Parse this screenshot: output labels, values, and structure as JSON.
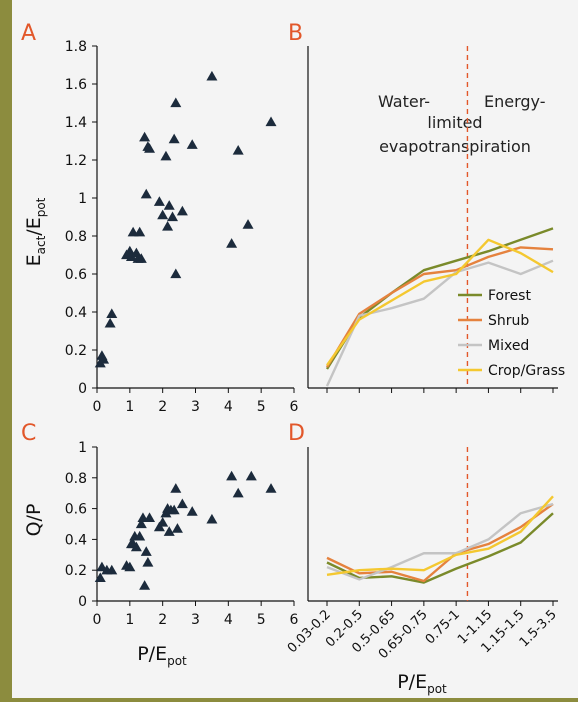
{
  "colors": {
    "background": "#f4f4f4",
    "frame": "#8c8c3e",
    "panel_letter": "#e2572a",
    "marker": "#1c2b3c",
    "divider": "#e2572a"
  },
  "shared": {
    "xlabel_left_main": "P/E",
    "xlabel_left_sub": "pot",
    "xlabel_right_main": "P/E",
    "xlabel_right_sub": "pot"
  },
  "chart_data": [
    {
      "panel": "A",
      "type": "scatter",
      "ylabel_parts": [
        "E",
        "act",
        "/E",
        "pot"
      ],
      "xlim": [
        0,
        6
      ],
      "ylim": [
        0,
        1.8
      ],
      "xticks": [
        "0",
        "1",
        "2",
        "3",
        "4",
        "5",
        "6"
      ],
      "yticks": [
        "0",
        "0.2",
        "0.4",
        "0.6",
        "0.8",
        "1",
        "1.2",
        "1.4",
        "1.6",
        "1.8"
      ],
      "x": [
        0.1,
        0.15,
        0.2,
        0.4,
        0.45,
        0.9,
        1.0,
        1.05,
        1.1,
        1.2,
        1.25,
        1.3,
        1.35,
        1.45,
        1.5,
        1.55,
        1.6,
        1.9,
        2.0,
        2.1,
        2.15,
        2.2,
        2.3,
        2.35,
        2.4,
        2.4,
        2.6,
        2.9,
        3.5,
        4.1,
        4.3,
        4.6,
        5.3
      ],
      "y": [
        0.13,
        0.17,
        0.15,
        0.34,
        0.39,
        0.7,
        0.72,
        0.69,
        0.82,
        0.71,
        0.68,
        0.82,
        0.68,
        1.32,
        1.02,
        1.27,
        1.26,
        0.98,
        0.91,
        1.22,
        0.85,
        0.96,
        0.9,
        1.31,
        0.6,
        1.5,
        0.93,
        1.28,
        1.64,
        0.76,
        1.25,
        0.86,
        1.4
      ],
      "marker": "triangle"
    },
    {
      "panel": "B",
      "type": "line",
      "ylim": [
        0,
        1.8
      ],
      "categories": [
        "0.03-0.2",
        "0.2-0.5",
        "0.5-0.65",
        "0.65-0.75",
        "0.75-1",
        "1-1.15",
        "1.15-1.5",
        "1.5-3.5"
      ],
      "annotations": {
        "water_line1": "Water-",
        "energy_line1": "Energy-",
        "limited": "limited",
        "evap": "evapotranspiration"
      },
      "divider_x": 4.35,
      "legend_position": "right",
      "series": [
        {
          "name": "Forest",
          "color": "#7a8a2a",
          "values": [
            0.1,
            0.37,
            0.5,
            0.62,
            0.67,
            0.72,
            0.78,
            0.84
          ]
        },
        {
          "name": "Shrub",
          "color": "#e5823e",
          "values": [
            0.11,
            0.39,
            0.5,
            0.6,
            0.62,
            0.69,
            0.74,
            0.73
          ]
        },
        {
          "name": "Mixed",
          "color": "#c4c4c4",
          "values": [
            0.01,
            0.38,
            0.42,
            0.47,
            0.61,
            0.66,
            0.6,
            0.67
          ]
        },
        {
          "name": "Crop/Grass",
          "color": "#f4c830",
          "values": [
            0.12,
            0.36,
            0.46,
            0.56,
            0.6,
            0.78,
            0.71,
            0.61
          ]
        }
      ]
    },
    {
      "panel": "C",
      "type": "scatter",
      "ylabel": "Q/P",
      "xlim": [
        0,
        6
      ],
      "ylim": [
        0,
        1
      ],
      "xticks": [
        "0",
        "1",
        "2",
        "3",
        "4",
        "5",
        "6"
      ],
      "yticks": [
        "0",
        "0.2",
        "0.4",
        "0.6",
        "0.8",
        "1"
      ],
      "x": [
        0.1,
        0.15,
        0.3,
        0.45,
        0.9,
        1.0,
        1.05,
        1.1,
        1.15,
        1.2,
        1.3,
        1.35,
        1.4,
        1.45,
        1.5,
        1.55,
        1.6,
        1.9,
        2.0,
        2.1,
        2.15,
        2.2,
        2.25,
        2.35,
        2.4,
        2.45,
        2.6,
        2.9,
        3.5,
        4.1,
        4.3,
        4.7,
        5.3
      ],
      "y": [
        0.15,
        0.22,
        0.2,
        0.2,
        0.23,
        0.22,
        0.37,
        0.37,
        0.42,
        0.35,
        0.42,
        0.5,
        0.54,
        0.1,
        0.32,
        0.25,
        0.54,
        0.48,
        0.51,
        0.57,
        0.6,
        0.45,
        0.59,
        0.59,
        0.73,
        0.47,
        0.63,
        0.58,
        0.53,
        0.81,
        0.7,
        0.81,
        0.73
      ],
      "marker": "triangle"
    },
    {
      "panel": "D",
      "type": "line",
      "ylim": [
        0,
        1
      ],
      "categories": [
        "0.03-0.2",
        "0.2-0.5",
        "0.5-0.65",
        "0.65-0.75",
        "0.75-1",
        "1-1.15",
        "1.15-1.5",
        "1.5-3.5"
      ],
      "divider_x": 4.35,
      "series": [
        {
          "name": "Forest",
          "color": "#7a8a2a",
          "values": [
            0.25,
            0.15,
            0.16,
            0.12,
            0.21,
            0.29,
            0.38,
            0.57
          ]
        },
        {
          "name": "Shrub",
          "color": "#e5823e",
          "values": [
            0.28,
            0.18,
            0.19,
            0.13,
            0.31,
            0.37,
            0.48,
            0.63
          ]
        },
        {
          "name": "Mixed",
          "color": "#c4c4c4",
          "values": [
            0.22,
            0.14,
            0.22,
            0.31,
            0.31,
            0.4,
            0.57,
            0.63
          ]
        },
        {
          "name": "Crop/Grass",
          "color": "#f4c830",
          "values": [
            0.17,
            0.2,
            0.21,
            0.2,
            0.3,
            0.34,
            0.45,
            0.68
          ]
        }
      ]
    }
  ]
}
